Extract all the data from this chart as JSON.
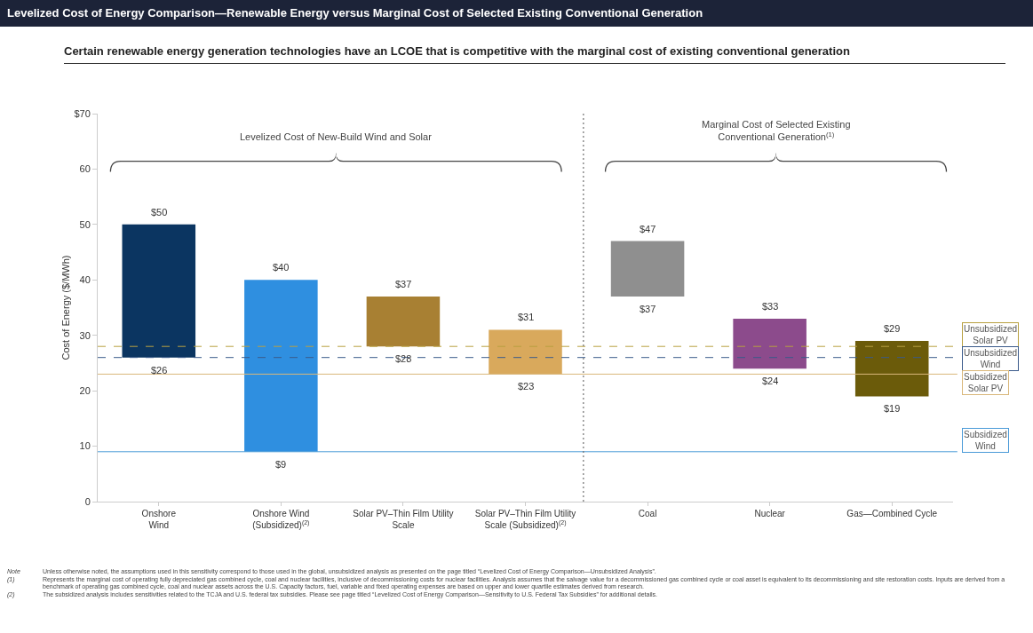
{
  "chart_data": {
    "type": "bar",
    "title": "Levelized Cost of Energy Comparison—Renewable Energy versus Marginal Cost of Selected Existing Conventional Generation",
    "subtitle": "Certain renewable energy generation technologies have an LCOE that is competitive with the marginal cost of existing conventional generation",
    "ylabel": "Cost of Energy ($/MWh)",
    "categories": [
      "Onshore\nWind",
      "Onshore Wind\n(Subsidized)$^{(2)}$",
      "Solar PV–Thin Film Utility\nScale",
      "Solar PV–Thin Film Utility\nScale (Subsidized)$^{(2)}$",
      "Coal",
      "Nuclear",
      "Gas—Combined Cycle"
    ],
    "base": [
      26,
      9,
      28,
      23,
      37,
      24,
      19
    ],
    "values": [
      24,
      31,
      9,
      8,
      10,
      9,
      10
    ],
    "colors": [
      "#0b3561",
      "#2f8fe0",
      "#a88033",
      "#d9a95c",
      "#8f8f8f",
      "#8c4b8c",
      "#6b5b0a"
    ],
    "ylim": [
      0,
      70
    ],
    "yticks": [
      0,
      10,
      20,
      30,
      40,
      50,
      60,
      {
        "value": 70,
        "label": "$70"
      }
    ],
    "grid": false,
    "ref_lines": [
      {
        "axis": "y",
        "value": 28,
        "label": "Unsubsidized\nSolar PV",
        "color": "#b8a040",
        "line_style": "dashed"
      },
      {
        "axis": "y",
        "value": 26,
        "label": "Unsubsidized\nWind",
        "color": "#3a5a8a",
        "line_style": "dashed"
      },
      {
        "axis": "y",
        "value": 23,
        "label": "Subsidized\nSolar PV",
        "color": "#d9b77a",
        "line_style": "solid"
      },
      {
        "axis": "y",
        "value": 9,
        "label": "Subsidized\nWind",
        "color": "#4a9ad8",
        "line_style": "solid"
      }
    ],
    "annotations": [
      {
        "text": "$50",
        "x": "Onshore\nWind",
        "y": 50
      },
      {
        "text": "$26",
        "x": "Onshore\nWind",
        "y": 26
      },
      {
        "text": "$40",
        "x": "Onshore Wind\n(Subsidized)$^{(2)}$",
        "y": 40
      },
      {
        "text": "$9",
        "x": "Onshore Wind\n(Subsidized)$^{(2)}$",
        "y": 9
      },
      {
        "text": "$37",
        "x": "Solar PV–Thin Film Utility\nScale",
        "y": 37
      },
      {
        "text": "$28",
        "x": "Solar PV–Thin Film Utility\nScale",
        "y": 28
      },
      {
        "text": "$31",
        "x": "Solar PV–Thin Film Utility\nScale (Subsidized)$^{(2)}$",
        "y": 31
      },
      {
        "text": "$23",
        "x": "Solar PV–Thin Film Utility\nScale (Subsidized)$^{(2)}$",
        "y": 23
      },
      {
        "text": "$47",
        "x": "Coal",
        "y": 47
      },
      {
        "text": "$37",
        "x": "Coal",
        "y": 37
      },
      {
        "text": "$33",
        "x": "Nuclear",
        "y": 33
      },
      {
        "text": "$24",
        "x": "Nuclear",
        "y": 24
      },
      {
        "text": "$29",
        "x": "Gas—Combined Cycle",
        "y": 29
      },
      {
        "text": "$19",
        "x": "Gas—Combined Cycle",
        "y": 19
      },
      "Levelized Cost of New-Build Wind and Solar",
      "Marginal Cost of Selected Existing\nConventional Generation$^{(1)}$",
      "Note\tUnless otherwise noted, the assumptions used in this sensitivity correspond to those used in the global, unsubsidized analysis as presented on the page titled “Levelized Cost of Energy Comparison—Unsubsidized Analysis”.",
      "(1)\tRepresents the marginal cost of operating fully depreciated gas combined cycle, coal and nuclear facilities, inclusive of decommissioning costs for nuclear facilities. Analysis assumes that the salvage value for a decommissioned gas combined cycle or coal asset is equivalent to its decommissioning and site restoration costs. Inputs are derived from a benchmark of operating gas combined cycle, coal and nuclear assets across the U.S. Capacity factors, fuel, variable and fixed operating expenses are based on upper and lower quartile estimates derived from research.",
      "(2)\tThe subsidized analysis includes sensitivities related to the TCJA and U.S. federal tax subsidies. Please see page titled “Levelized Cost of Energy Comparison—Sensitivity to U.S. Federal Tax Subsidies” for additional details."
    ]
  }
}
